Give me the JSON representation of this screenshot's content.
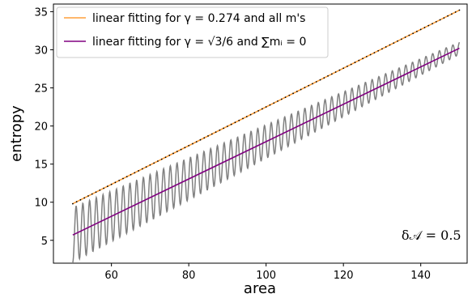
{
  "chart_data": {
    "type": "line",
    "xlabel": "area",
    "ylabel": "entropy",
    "xlim": [
      45,
      152
    ],
    "ylim": [
      2,
      36
    ],
    "xticks": [
      60,
      80,
      100,
      120,
      140
    ],
    "yticks": [
      5,
      10,
      15,
      20,
      25,
      30,
      35
    ],
    "grid": false,
    "legend_position": "top-left",
    "annotation": {
      "text": "δ𝒜 = 0.5",
      "x": 135,
      "y": 5.1
    },
    "series": [
      {
        "name": "linear fitting for γ = 0.274 and all m's",
        "kind": "line",
        "color": "#ff9f3a",
        "x": [
          50,
          150
        ],
        "y": [
          9.8,
          35.2
        ]
      },
      {
        "name": "linear fitting for γ = √3/6 and ∑mᵢ = 0",
        "kind": "line",
        "color": "#800080",
        "x": [
          50,
          150
        ],
        "y": [
          5.7,
          30.2
        ]
      },
      {
        "kind": "dots",
        "color": "#000000",
        "x_start": 50,
        "x_end": 150,
        "x_step": 1,
        "y_intercept": 9.8,
        "y_slope": 0.254
      },
      {
        "kind": "oscillation",
        "color": "#808080",
        "x_start": 50,
        "x_end": 150,
        "y_intercept": 5.7,
        "y_slope": 0.245,
        "amplitude_start": 3.6,
        "amplitude_end": 0.8,
        "period": 1.74
      }
    ]
  },
  "legend": {
    "items": [
      {
        "label": "linear fitting for γ = 0.274 and all m's",
        "color": "#ff9f3a"
      },
      {
        "label": "linear fitting for γ = √3/6 and ∑mᵢ = 0",
        "color": "#800080"
      }
    ]
  }
}
